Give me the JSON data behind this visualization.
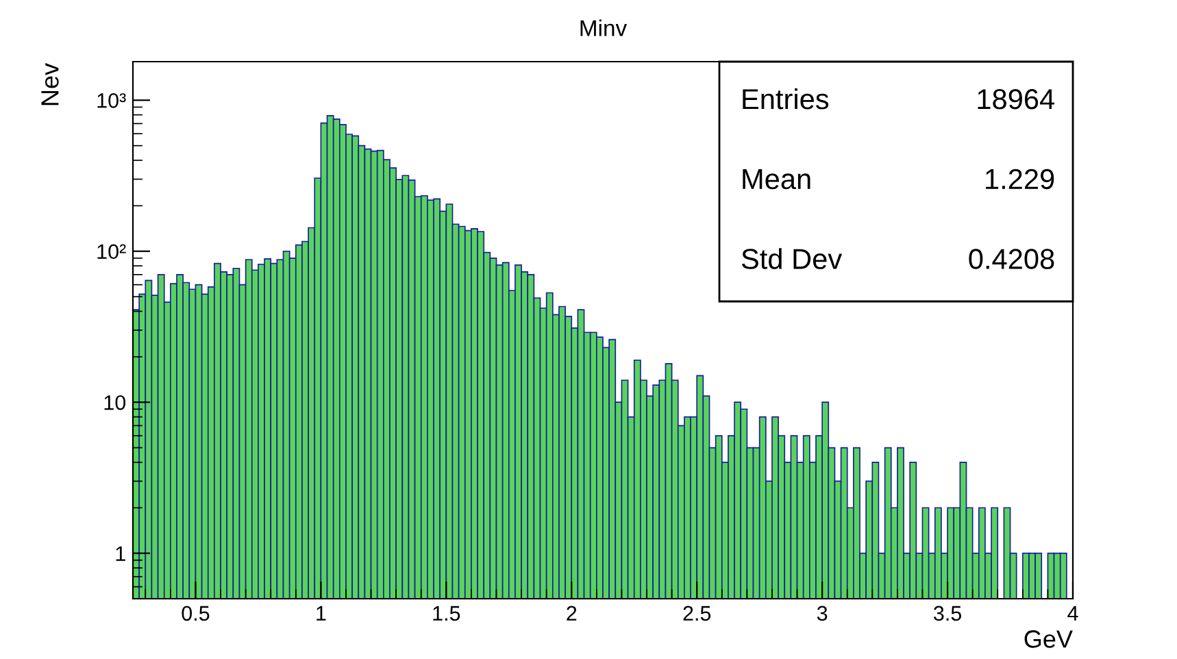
{
  "chart_data": {
    "type": "histogram",
    "title": "Minv",
    "xlabel": "GeV",
    "ylabel": "Nev",
    "color": "#59d459",
    "bins": [
      0.25,
      0.275,
      0.3,
      0.325,
      0.35,
      0.375,
      0.4,
      0.425,
      0.45,
      0.475,
      0.5,
      0.525,
      0.55,
      0.575,
      0.6,
      0.625,
      0.65,
      0.675,
      0.7,
      0.725,
      0.75,
      0.775,
      0.8,
      0.825,
      0.85,
      0.875,
      0.9,
      0.925,
      0.95,
      0.975,
      1.0,
      1.025,
      1.05,
      1.075,
      1.1,
      1.125,
      1.15,
      1.175,
      1.2,
      1.225,
      1.25,
      1.275,
      1.3,
      1.325,
      1.35,
      1.375,
      1.4,
      1.425,
      1.45,
      1.475,
      1.5,
      1.525,
      1.55,
      1.575,
      1.6,
      1.625,
      1.65,
      1.675,
      1.7,
      1.725,
      1.75,
      1.775,
      1.8,
      1.825,
      1.85,
      1.875,
      1.9,
      1.925,
      1.95,
      1.975,
      2.0,
      2.025,
      2.05,
      2.075,
      2.1,
      2.125,
      2.15,
      2.175,
      2.2,
      2.225,
      2.25,
      2.275,
      2.3,
      2.325,
      2.35,
      2.375,
      2.4,
      2.425,
      2.45,
      2.475,
      2.5,
      2.525,
      2.55,
      2.575,
      2.6,
      2.625,
      2.65,
      2.675,
      2.7,
      2.725,
      2.75,
      2.775,
      2.8,
      2.825,
      2.85,
      2.875,
      2.9,
      2.925,
      2.95,
      2.975,
      3.0,
      3.025,
      3.05,
      3.075,
      3.1,
      3.125,
      3.15,
      3.175,
      3.2,
      3.225,
      3.25,
      3.275,
      3.3,
      3.325,
      3.35,
      3.375,
      3.4,
      3.425,
      3.45,
      3.475,
      3.5,
      3.525,
      3.55,
      3.575,
      3.6,
      3.625,
      3.65,
      3.675,
      3.7,
      3.725,
      3.75,
      3.775,
      3.8,
      3.825,
      3.85,
      3.875,
      3.9,
      3.925,
      3.95,
      3.975,
      4.0
    ],
    "values": [
      41,
      52,
      64,
      51,
      70,
      46,
      61,
      70,
      62,
      56,
      60,
      52,
      58,
      83,
      73,
      70,
      77,
      60,
      88,
      75,
      82,
      89,
      83,
      88,
      100,
      90,
      110,
      116,
      143,
      305,
      706,
      790,
      750,
      690,
      595,
      580,
      500,
      475,
      460,
      465,
      404,
      356,
      298,
      317,
      296,
      230,
      233,
      218,
      222,
      184,
      205,
      151,
      146,
      137,
      141,
      135,
      98,
      90,
      81,
      84,
      55,
      81,
      73,
      70,
      49,
      42,
      53,
      38,
      43,
      37,
      31,
      41,
      29,
      29,
      27,
      23,
      26,
      10,
      14,
      8,
      19,
      14,
      11,
      13,
      14,
      18,
      14,
      7,
      8,
      8,
      15,
      11,
      5,
      6,
      4,
      6,
      10,
      9,
      5,
      5,
      8,
      3,
      8,
      6,
      4,
      6,
      4,
      6,
      4,
      6,
      10,
      5,
      3,
      5,
      2,
      5,
      1,
      3,
      4,
      1,
      5,
      2,
      5,
      1,
      4,
      1,
      2,
      1,
      2,
      1,
      2,
      2,
      4,
      2,
      1,
      2,
      1,
      2,
      null,
      2,
      1,
      null,
      1,
      1,
      1,
      null,
      1,
      1,
      1,
      null
    ],
    "log": "y",
    "xlim": [
      0.25,
      4.0
    ],
    "ylim": [
      0.5,
      1800
    ],
    "xticks": [
      0.5,
      1,
      1.5,
      2,
      2.5,
      3,
      3.5,
      4
    ],
    "yticks": [
      1,
      10,
      {
        "value": 100,
        "label": "10²"
      },
      {
        "value": 1000,
        "label": "10³"
      }
    ],
    "grid": false,
    "legend": false,
    "annotations": [
      "Entries 18964",
      "Mean 1.229",
      "Std Dev 0.4208"
    ]
  }
}
